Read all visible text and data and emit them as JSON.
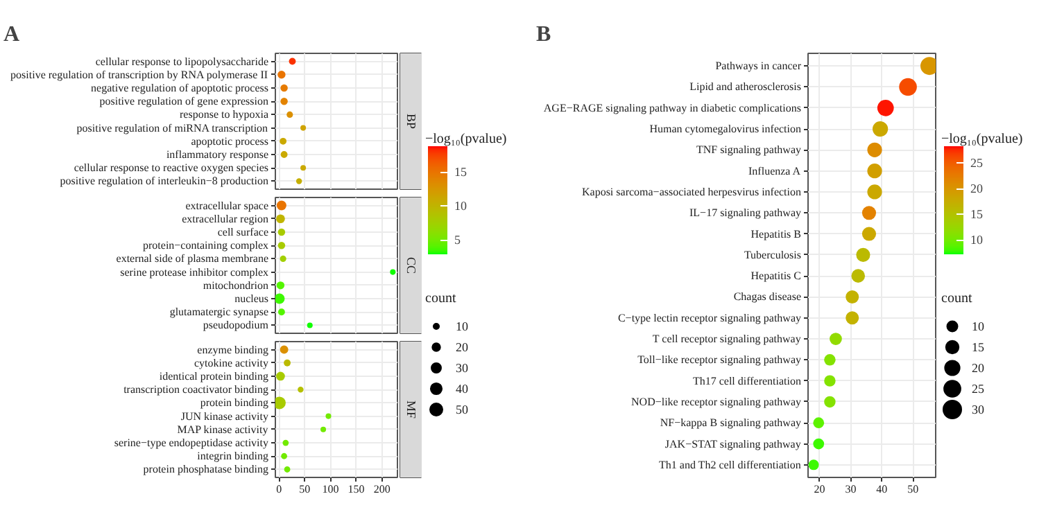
{
  "chart_data": [
    {
      "type": "bubble",
      "orientation": "horizontal",
      "title": "A",
      "grid": true,
      "clabel": "−log₁₀(pvalue)",
      "clim": [
        2.9,
        18.8
      ],
      "cticks": [
        5,
        10,
        15
      ],
      "legend_title": "count",
      "size_legend": [
        10,
        20,
        30,
        40,
        50
      ],
      "xlim": [
        -7,
        230
      ],
      "xticks": [
        0,
        50,
        100,
        150,
        200
      ],
      "annotations": [
        "BP",
        "CC",
        "MF"
      ],
      "categories": [
        "cellular response to lipopolysaccharide",
        "positive regulation of transcription by RNA polymerase II",
        "negative regulation of apoptotic process",
        "positive regulation of gene expression",
        "response to hypoxia",
        "positive regulation of miRNA transcription",
        "apoptotic process",
        "inflammatory response",
        "cellular response to reactive oxygen species",
        "positive regulation of interleukin−8 production",
        "extracellular space",
        "extracellular region",
        "cell surface",
        "protein−containing complex",
        "external side of plasma membrane",
        "serine protease inhibitor complex",
        "mitochondrion",
        "nucleus",
        "glutamatergic synapse",
        "pseudopodium",
        "enzyme binding",
        "cytokine activity",
        "identical protein binding",
        "transcription coactivator binding",
        "protein binding",
        "JUN kinase activity",
        "MAP kinase activity",
        "serine−type endopeptidase activity",
        "integrin binding",
        "protein phosphatase binding"
      ],
      "values": [
        26,
        5,
        10,
        10,
        21,
        47,
        8,
        10,
        47,
        39,
        5,
        3,
        5,
        5,
        8,
        221,
        3,
        1,
        5,
        60,
        10,
        16,
        3,
        42,
        1,
        96,
        86,
        13,
        10,
        16
      ],
      "sizes": [
        15,
        20,
        17,
        17,
        13,
        10,
        15,
        15,
        10,
        11,
        30,
        25,
        17,
        17,
        13,
        10,
        20,
        35,
        15,
        10,
        22,
        15,
        25,
        11,
        50,
        10,
        10,
        12,
        12,
        12
      ],
      "cvalues": [
        18,
        15,
        14.5,
        14,
        13,
        11.5,
        11,
        11,
        11,
        10.5,
        15,
        10,
        8,
        8,
        7.5,
        3,
        4,
        3.5,
        4,
        3,
        13,
        9.5,
        8,
        9,
        8,
        5,
        5,
        5,
        5,
        5
      ]
    },
    {
      "type": "bubble",
      "orientation": "horizontal",
      "title": "B",
      "grid": true,
      "clabel": "−log₁₀(pvalue)",
      "clim": [
        7.2,
        28.3
      ],
      "cticks": [
        10,
        15,
        20,
        25
      ],
      "legend_title": "count",
      "size_legend": [
        10,
        15,
        20,
        25,
        30
      ],
      "xlim": [
        16.3,
        57.3
      ],
      "xticks": [
        20,
        30,
        40,
        50
      ],
      "categories": [
        "Pathways in cancer",
        "Lipid and atherosclerosis",
        "AGE−RAGE signaling pathway in diabetic complications",
        "Human cytomegalovirus infection",
        "TNF signaling pathway",
        "Influenza A",
        "Kaposi sarcoma−associated herpesvirus infection",
        "IL−17 signaling pathway",
        "Hepatitis B",
        "Tuberculosis",
        "Hepatitis C",
        "Chagas disease",
        "C−type lectin receptor signaling pathway",
        "T cell receptor signaling pathway",
        "Toll−like receptor signaling pathway",
        "Th17 cell differentiation",
        "NOD−like receptor signaling pathway",
        "NF−kappa B signaling pathway",
        "JAK−STAT signaling pathway",
        "Th1 and Th2 cell differentiation"
      ],
      "values": [
        55.3,
        48.4,
        41.2,
        39.5,
        37.7,
        37.7,
        37.7,
        35.9,
        35.9,
        34.0,
        32.4,
        30.5,
        30.5,
        25.2,
        23.3,
        23.3,
        23.3,
        19.7,
        19.7,
        18.1
      ],
      "sizes": [
        30,
        29,
        25,
        22,
        20,
        20,
        20,
        18,
        18,
        18,
        17,
        16,
        16,
        14,
        12,
        12,
        12,
        11,
        11,
        10
      ],
      "cvalues": [
        20,
        26,
        28,
        18,
        21,
        19,
        18,
        22,
        18,
        16,
        16,
        17,
        17,
        12,
        11,
        11,
        11,
        9,
        8,
        8
      ]
    }
  ]
}
